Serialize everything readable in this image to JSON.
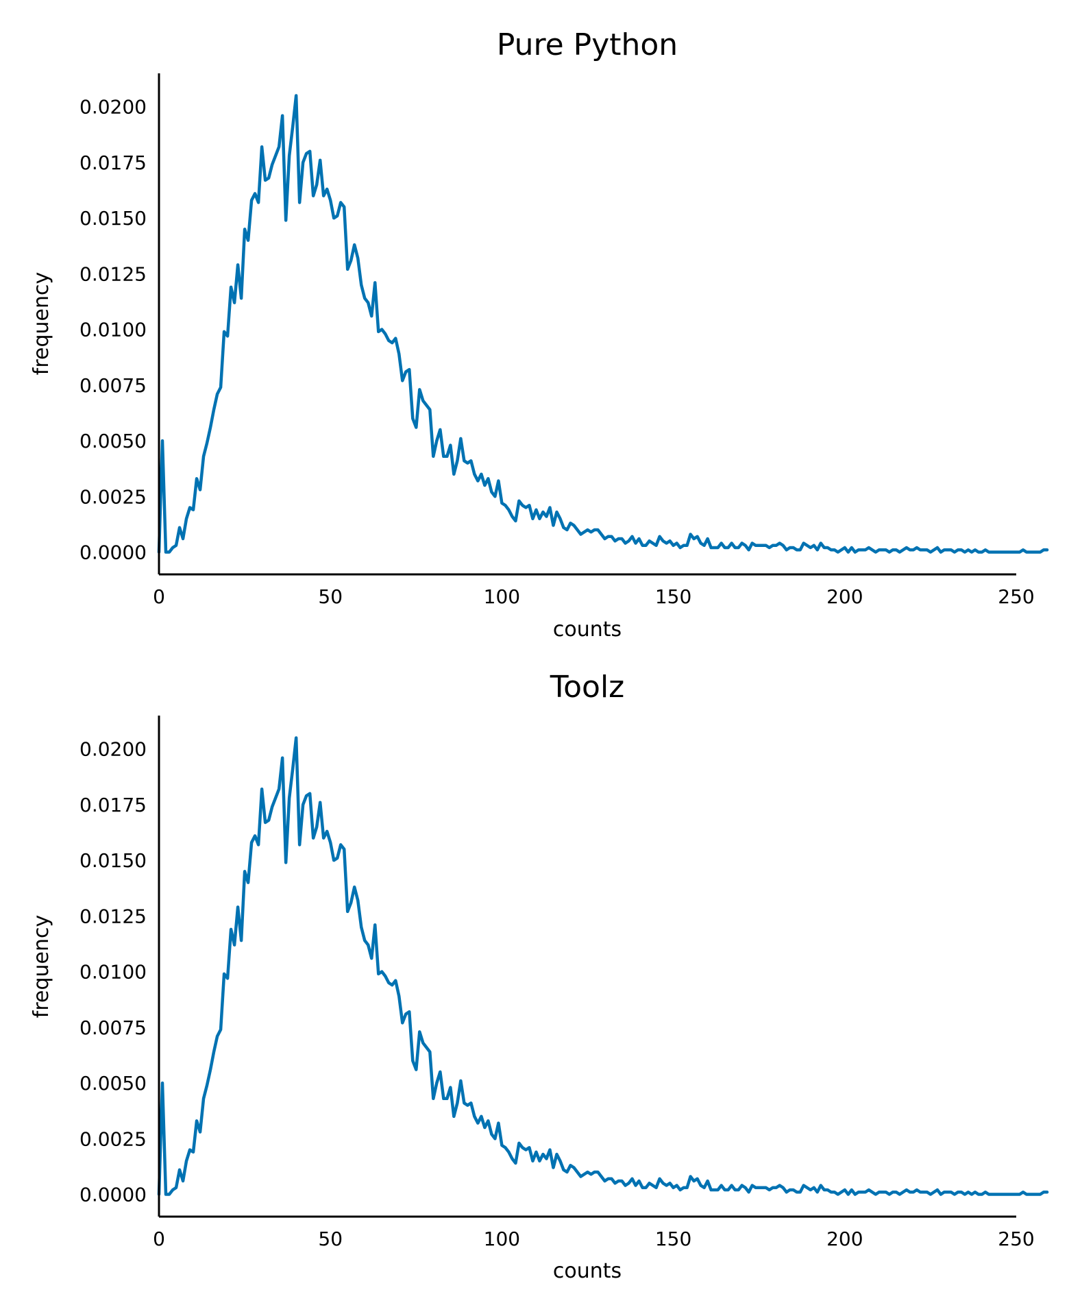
{
  "colors": {
    "line": "#0072b2",
    "axis": "#000000",
    "background": "#ffffff"
  },
  "chart_data": [
    {
      "type": "line",
      "title": "Pure Python",
      "xlabel": "counts",
      "ylabel": "frequency",
      "xlim": [
        0,
        250
      ],
      "ylim": [
        -0.001,
        0.0215
      ],
      "xticks": [
        "0",
        "50",
        "100",
        "150",
        "200",
        "250"
      ],
      "yticks": [
        "0.0000",
        "0.0025",
        "0.0050",
        "0.0075",
        "0.0100",
        "0.0125",
        "0.0150",
        "0.0175",
        "0.0200"
      ],
      "grid": false,
      "legend": "none",
      "series": [
        {
          "x_start": 0,
          "x_step": 1,
          "values": [
            0.0,
            0.005,
            0.0,
            0.0,
            0.0002,
            0.0003,
            0.0011,
            0.0006,
            0.0015,
            0.002,
            0.0019,
            0.0033,
            0.0028,
            0.0043,
            0.0049,
            0.0056,
            0.0064,
            0.0071,
            0.0074,
            0.0099,
            0.0097,
            0.0119,
            0.0112,
            0.0129,
            0.0114,
            0.0145,
            0.014,
            0.0158,
            0.0161,
            0.0157,
            0.0182,
            0.0167,
            0.0168,
            0.0174,
            0.0178,
            0.0182,
            0.0196,
            0.0149,
            0.0178,
            0.0191,
            0.0205,
            0.0157,
            0.0175,
            0.0179,
            0.018,
            0.016,
            0.0165,
            0.0176,
            0.016,
            0.0163,
            0.0158,
            0.015,
            0.0151,
            0.0157,
            0.0155,
            0.0127,
            0.0131,
            0.0138,
            0.0132,
            0.012,
            0.0114,
            0.0112,
            0.0106,
            0.0121,
            0.0099,
            0.01,
            0.0098,
            0.0095,
            0.0094,
            0.0096,
            0.0089,
            0.0077,
            0.0081,
            0.0082,
            0.006,
            0.0056,
            0.0073,
            0.0068,
            0.0066,
            0.0064,
            0.0043,
            0.005,
            0.0055,
            0.0043,
            0.0043,
            0.0048,
            0.0035,
            0.0041,
            0.0051,
            0.0041,
            0.004,
            0.0041,
            0.0035,
            0.0032,
            0.0035,
            0.003,
            0.0033,
            0.0027,
            0.0025,
            0.0032,
            0.0022,
            0.0021,
            0.0019,
            0.0016,
            0.0014,
            0.0023,
            0.0021,
            0.002,
            0.0021,
            0.0015,
            0.0019,
            0.0015,
            0.0018,
            0.0016,
            0.002,
            0.0012,
            0.0018,
            0.0015,
            0.0011,
            0.001,
            0.0013,
            0.0012,
            0.001,
            0.0008,
            0.0009,
            0.001,
            0.0009,
            0.001,
            0.001,
            0.0008,
            0.0006,
            0.0007,
            0.0007,
            0.0005,
            0.0006,
            0.0006,
            0.0004,
            0.0005,
            0.0007,
            0.0004,
            0.0006,
            0.0003,
            0.0003,
            0.0005,
            0.0004,
            0.0003,
            0.0007,
            0.0005,
            0.0004,
            0.0005,
            0.0003,
            0.0004,
            0.0002,
            0.0003,
            0.0003,
            0.0008,
            0.0006,
            0.0007,
            0.0004,
            0.0003,
            0.0006,
            0.0002,
            0.0002,
            0.0002,
            0.0004,
            0.0002,
            0.0002,
            0.0004,
            0.0002,
            0.0002,
            0.0004,
            0.0003,
            0.0001,
            0.0004,
            0.0003,
            0.0003,
            0.0003,
            0.0003,
            0.0002,
            0.0003,
            0.0003,
            0.0004,
            0.0003,
            0.0001,
            0.0002,
            0.0002,
            0.0001,
            0.0001,
            0.0004,
            0.0003,
            0.0002,
            0.0003,
            0.0001,
            0.0004,
            0.0002,
            0.0002,
            0.0001,
            0.0001,
            0.0,
            0.0001,
            0.0002,
            0.0,
            0.0002,
            0.0,
            0.0001,
            0.0001,
            0.0001,
            0.0002,
            0.0001,
            0.0,
            0.0001,
            0.0001,
            0.0001,
            0.0,
            0.0001,
            0.0001,
            0.0,
            0.0001,
            0.0002,
            0.0001,
            0.0001,
            0.0002,
            0.0001,
            0.0001,
            0.0001,
            0.0,
            0.0001,
            0.0002,
            0.0,
            0.0001,
            0.0001,
            0.0001,
            0.0,
            0.0001,
            0.0001,
            0.0,
            0.0001,
            0.0,
            0.0001,
            0.0,
            0.0,
            0.0001,
            0.0,
            0.0,
            0.0,
            0.0,
            0.0,
            0.0,
            0.0,
            0.0,
            0.0,
            0.0,
            0.0001,
            0.0,
            0.0,
            0.0,
            0.0,
            0.0,
            0.0001,
            0.0001
          ]
        }
      ]
    },
    {
      "type": "line",
      "title": "Toolz",
      "xlabel": "counts",
      "ylabel": "frequency",
      "xlim": [
        0,
        250
      ],
      "ylim": [
        -0.001,
        0.0215
      ],
      "xticks": [
        "0",
        "50",
        "100",
        "150",
        "200",
        "250"
      ],
      "yticks": [
        "0.0000",
        "0.0025",
        "0.0050",
        "0.0075",
        "0.0100",
        "0.0125",
        "0.0150",
        "0.0175",
        "0.0200"
      ],
      "grid": false,
      "legend": "none",
      "series": [
        {
          "x_start": 0,
          "x_step": 1,
          "values": [
            0.0,
            0.005,
            0.0,
            0.0,
            0.0002,
            0.0003,
            0.0011,
            0.0006,
            0.0015,
            0.002,
            0.0019,
            0.0033,
            0.0028,
            0.0043,
            0.0049,
            0.0056,
            0.0064,
            0.0071,
            0.0074,
            0.0099,
            0.0097,
            0.0119,
            0.0112,
            0.0129,
            0.0114,
            0.0145,
            0.014,
            0.0158,
            0.0161,
            0.0157,
            0.0182,
            0.0167,
            0.0168,
            0.0174,
            0.0178,
            0.0182,
            0.0196,
            0.0149,
            0.0178,
            0.0191,
            0.0205,
            0.0157,
            0.0175,
            0.0179,
            0.018,
            0.016,
            0.0165,
            0.0176,
            0.016,
            0.0163,
            0.0158,
            0.015,
            0.0151,
            0.0157,
            0.0155,
            0.0127,
            0.0131,
            0.0138,
            0.0132,
            0.012,
            0.0114,
            0.0112,
            0.0106,
            0.0121,
            0.0099,
            0.01,
            0.0098,
            0.0095,
            0.0094,
            0.0096,
            0.0089,
            0.0077,
            0.0081,
            0.0082,
            0.006,
            0.0056,
            0.0073,
            0.0068,
            0.0066,
            0.0064,
            0.0043,
            0.005,
            0.0055,
            0.0043,
            0.0043,
            0.0048,
            0.0035,
            0.0041,
            0.0051,
            0.0041,
            0.004,
            0.0041,
            0.0035,
            0.0032,
            0.0035,
            0.003,
            0.0033,
            0.0027,
            0.0025,
            0.0032,
            0.0022,
            0.0021,
            0.0019,
            0.0016,
            0.0014,
            0.0023,
            0.0021,
            0.002,
            0.0021,
            0.0015,
            0.0019,
            0.0015,
            0.0018,
            0.0016,
            0.002,
            0.0012,
            0.0018,
            0.0015,
            0.0011,
            0.001,
            0.0013,
            0.0012,
            0.001,
            0.0008,
            0.0009,
            0.001,
            0.0009,
            0.001,
            0.001,
            0.0008,
            0.0006,
            0.0007,
            0.0007,
            0.0005,
            0.0006,
            0.0006,
            0.0004,
            0.0005,
            0.0007,
            0.0004,
            0.0006,
            0.0003,
            0.0003,
            0.0005,
            0.0004,
            0.0003,
            0.0007,
            0.0005,
            0.0004,
            0.0005,
            0.0003,
            0.0004,
            0.0002,
            0.0003,
            0.0003,
            0.0008,
            0.0006,
            0.0007,
            0.0004,
            0.0003,
            0.0006,
            0.0002,
            0.0002,
            0.0002,
            0.0004,
            0.0002,
            0.0002,
            0.0004,
            0.0002,
            0.0002,
            0.0004,
            0.0003,
            0.0001,
            0.0004,
            0.0003,
            0.0003,
            0.0003,
            0.0003,
            0.0002,
            0.0003,
            0.0003,
            0.0004,
            0.0003,
            0.0001,
            0.0002,
            0.0002,
            0.0001,
            0.0001,
            0.0004,
            0.0003,
            0.0002,
            0.0003,
            0.0001,
            0.0004,
            0.0002,
            0.0002,
            0.0001,
            0.0001,
            0.0,
            0.0001,
            0.0002,
            0.0,
            0.0002,
            0.0,
            0.0001,
            0.0001,
            0.0001,
            0.0002,
            0.0001,
            0.0,
            0.0001,
            0.0001,
            0.0001,
            0.0,
            0.0001,
            0.0001,
            0.0,
            0.0001,
            0.0002,
            0.0001,
            0.0001,
            0.0002,
            0.0001,
            0.0001,
            0.0001,
            0.0,
            0.0001,
            0.0002,
            0.0,
            0.0001,
            0.0001,
            0.0001,
            0.0,
            0.0001,
            0.0001,
            0.0,
            0.0001,
            0.0,
            0.0001,
            0.0,
            0.0,
            0.0001,
            0.0,
            0.0,
            0.0,
            0.0,
            0.0,
            0.0,
            0.0,
            0.0,
            0.0,
            0.0,
            0.0001,
            0.0,
            0.0,
            0.0,
            0.0,
            0.0,
            0.0001,
            0.0001
          ]
        }
      ]
    }
  ]
}
